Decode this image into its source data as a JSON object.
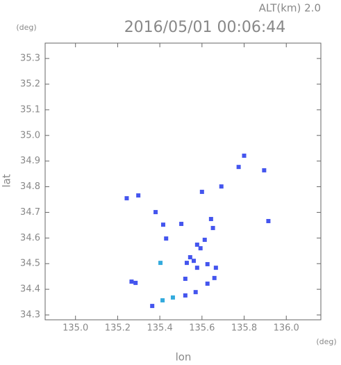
{
  "chart_data": {
    "type": "scatter",
    "title": "2016/05/01 00:06:44",
    "annotation": "ALT(km) 2.0",
    "ylabel_unit": "(deg)",
    "xlabel_unit": "(deg)",
    "xlabel": "lon",
    "ylabel": "lat",
    "xlim": [
      134.856,
      136.164
    ],
    "ylim": [
      34.281,
      35.36
    ],
    "xticks": [
      {
        "value": 135,
        "label": "135.0"
      },
      135.2,
      135.4,
      135.6,
      135.8,
      {
        "value": 136,
        "label": "136.0"
      }
    ],
    "yticks": [
      34.3,
      34.4,
      34.5,
      34.6,
      34.7,
      34.8,
      34.9,
      {
        "value": 35,
        "label": "35.0"
      },
      35.1,
      35.2,
      35.3
    ],
    "x": [
      135.243,
      135.298,
      135.38,
      135.416,
      135.43,
      135.502,
      135.577,
      135.593,
      135.544,
      135.561,
      135.528,
      135.613,
      135.643,
      135.652,
      135.626,
      135.577,
      135.403,
      135.521,
      135.666,
      135.659,
      135.626,
      135.266,
      135.285,
      135.364,
      135.413,
      135.462,
      135.521,
      135.57,
      135.774,
      135.8,
      135.895,
      135.915,
      135.692,
      135.6
    ],
    "y": [
      34.755,
      34.766,
      34.701,
      34.652,
      34.598,
      34.655,
      34.574,
      34.56,
      34.525,
      34.511,
      34.503,
      34.593,
      34.674,
      34.639,
      34.498,
      34.484,
      34.503,
      34.441,
      34.484,
      34.444,
      34.422,
      34.43,
      34.425,
      34.335,
      34.357,
      34.368,
      34.376,
      34.389,
      34.877,
      34.921,
      34.864,
      34.666,
      34.801,
      34.78
    ],
    "colors": [
      "#4455ee",
      "#4455ee",
      "#4455ee",
      "#4455ee",
      "#4455ee",
      "#4455ee",
      "#4455ee",
      "#4455ee",
      "#4455ee",
      "#4455ee",
      "#4455ee",
      "#4455ee",
      "#4455ee",
      "#4455ee",
      "#4455ee",
      "#4455ee",
      "#33aadd",
      "#4455ee",
      "#4455ee",
      "#4455ee",
      "#4455ee",
      "#4455ee",
      "#4455ee",
      "#4455ee",
      "#33aadd",
      "#33aadd",
      "#4455ee",
      "#4455ee",
      "#4455ee",
      "#4455ee",
      "#4455ee",
      "#4455ee",
      "#4455ee",
      "#4455ee"
    ]
  }
}
